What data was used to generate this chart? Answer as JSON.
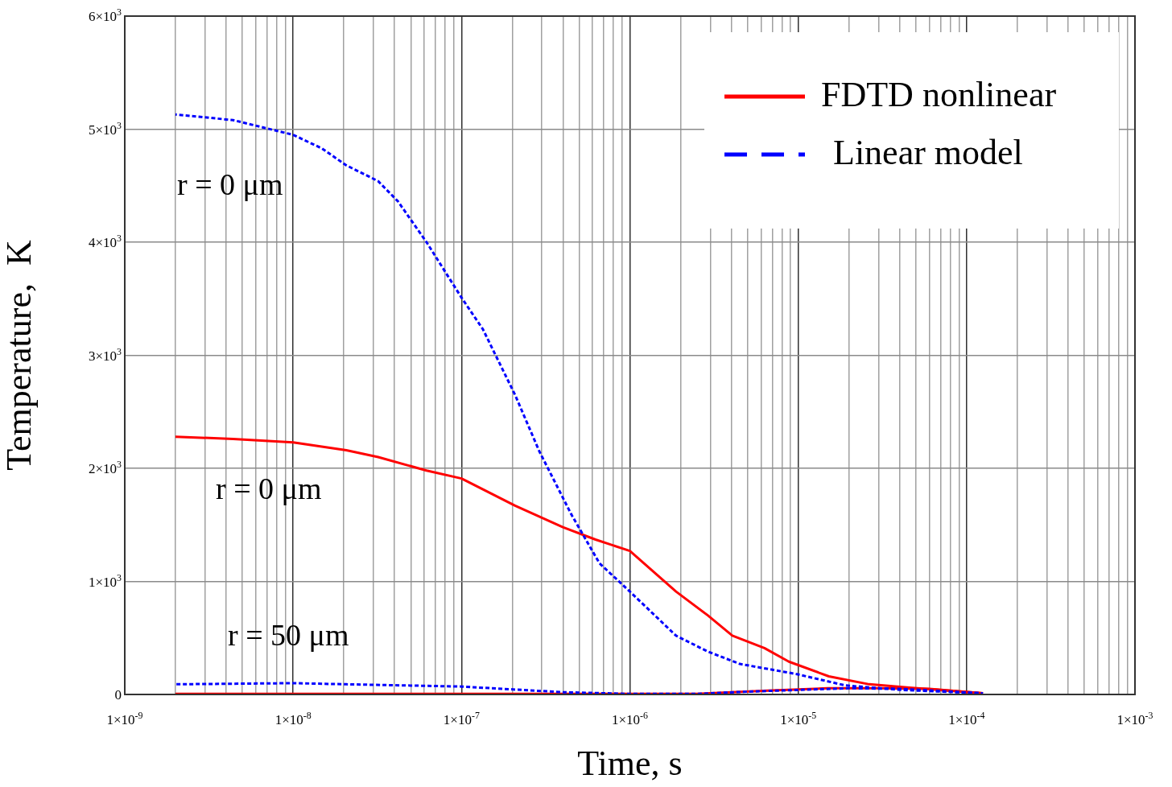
{
  "chart_data": {
    "type": "line",
    "xlabel": "Time, s",
    "ylabel": "Temperature,  K",
    "log": "x",
    "grid": true,
    "legend": "top right",
    "marker": "none",
    "xlim": [
      1e-09,
      0.001
    ],
    "xticks": [
      {
        "value": 1e-09,
        "label": "1×10$^{-9}$"
      },
      {
        "value": 2e-09,
        "label": null
      },
      {
        "value": 3e-09,
        "label": null
      },
      {
        "value": 4e-09,
        "label": null
      },
      {
        "value": 5e-09,
        "label": null
      },
      {
        "value": 6e-09,
        "label": null
      },
      {
        "value": 7e-09,
        "label": null
      },
      {
        "value": 8e-09,
        "label": null
      },
      {
        "value": 9e-09,
        "label": null
      },
      {
        "value": 1e-08,
        "label": "1×10$^{-8}$"
      },
      {
        "value": 2e-08,
        "label": null
      },
      {
        "value": 3e-08,
        "label": null
      },
      {
        "value": 4e-08,
        "label": null
      },
      {
        "value": 5e-08,
        "label": null
      },
      {
        "value": 6e-08,
        "label": null
      },
      {
        "value": 7e-08,
        "label": null
      },
      {
        "value": 8e-08,
        "label": null
      },
      {
        "value": 9e-08,
        "label": null
      },
      {
        "value": 1e-07,
        "label": "1×10$^{-7}$"
      },
      {
        "value": 2e-07,
        "label": null
      },
      {
        "value": 3e-07,
        "label": null
      },
      {
        "value": 4e-07,
        "label": null
      },
      {
        "value": 5e-07,
        "label": null
      },
      {
        "value": 6e-07,
        "label": null
      },
      {
        "value": 7e-07,
        "label": null
      },
      {
        "value": 8e-07,
        "label": null
      },
      {
        "value": 9e-07,
        "label": null
      },
      {
        "value": 1e-06,
        "label": "1×10$^{-6}$"
      },
      {
        "value": 2e-06,
        "label": null
      },
      {
        "value": 3e-06,
        "label": null
      },
      {
        "value": 4e-06,
        "label": null
      },
      {
        "value": 5e-06,
        "label": null
      },
      {
        "value": 6e-06,
        "label": null
      },
      {
        "value": 7e-06,
        "label": null
      },
      {
        "value": 8e-06,
        "label": null
      },
      {
        "value": 9e-06,
        "label": null
      },
      {
        "value": 1e-05,
        "label": "1×10$^{-5}$"
      },
      {
        "value": 2e-05,
        "label": null
      },
      {
        "value": 3e-05,
        "label": null
      },
      {
        "value": 4e-05,
        "label": null
      },
      {
        "value": 5e-05,
        "label": null
      },
      {
        "value": 6e-05,
        "label": null
      },
      {
        "value": 7e-05,
        "label": null
      },
      {
        "value": 8e-05,
        "label": null
      },
      {
        "value": 9e-05,
        "label": null
      },
      {
        "value": 0.0001,
        "label": "1×10$^{-4}$"
      },
      {
        "value": 0.0002,
        "label": null
      },
      {
        "value": 0.0003,
        "label": null
      },
      {
        "value": 0.0004,
        "label": null
      },
      {
        "value": 0.0005,
        "label": null
      },
      {
        "value": 0.0006,
        "label": null
      },
      {
        "value": 0.0007,
        "label": null
      },
      {
        "value": 0.0008,
        "label": null
      },
      {
        "value": 0.0009,
        "label": null
      },
      {
        "value": 0.001,
        "label": "1×10$^{-3}$"
      }
    ],
    "ylim": [
      0,
      6000
    ],
    "yticks": [
      {
        "value": 0,
        "label": "0"
      },
      {
        "value": 1000,
        "label": "1×10$^{3}$"
      },
      {
        "value": 2000,
        "label": "2×10$^{3}$"
      },
      {
        "value": 3000,
        "label": "3×10$^{3}$"
      },
      {
        "value": 4000,
        "label": "4×10$^{3}$"
      },
      {
        "value": 5000,
        "label": "5×10$^{3}$"
      },
      {
        "value": 6000,
        "label": "6×10$^{3}$"
      }
    ],
    "series": [
      {
        "name": "FDTD nonlinear",
        "color": "#ff0000",
        "line_style": "solid",
        "x": [
          2e-09,
          4.4e-09,
          1e-08,
          2.07e-08,
          3.2e-08,
          6.2e-08,
          1e-07,
          2.08e-07,
          4e-07,
          6.25e-07,
          1e-06,
          1.88e-06,
          2.9e-06,
          4.06e-06,
          6.3e-06,
          8.8e-06,
          1.52e-05,
          2.64e-05,
          4.57e-05,
          0.000125
        ],
        "values": [
          2280,
          2260,
          2230,
          2160,
          2100,
          1980,
          1910,
          1670,
          1480,
          1370,
          1270,
          910,
          700,
          520,
          410,
          290,
          160,
          90,
          60,
          10
        ]
      },
      {
        "name": "Linear model",
        "color": "#0000ff",
        "line_style": "dashed",
        "x": [
          2e-09,
          4.4e-09,
          1e-08,
          1.48e-08,
          2.07e-08,
          3.2e-08,
          4.2e-08,
          6.2e-08,
          1e-07,
          1.34e-07,
          2.08e-07,
          2.9e-07,
          4.5e-07,
          6.6e-07,
          1e-06,
          1.88e-06,
          2.9e-06,
          4.5e-06,
          9.8e-06,
          1.9e-05,
          4.1e-05,
          0.000125
        ],
        "values": [
          5130,
          5080,
          4950,
          4830,
          4680,
          4540,
          4360,
          4000,
          3510,
          3230,
          2650,
          2150,
          1590,
          1160,
          910,
          520,
          380,
          270,
          180,
          80,
          40,
          10
        ]
      },
      {
        "color": "#ff0000",
        "line_style": "solid",
        "x": [
          2e-09,
          1e-07,
          1e-06,
          2.5e-06,
          4e-06,
          7e-06,
          1.5e-05,
          3e-05,
          6e-05,
          0.000125
        ],
        "values": [
          5,
          5,
          5,
          5,
          20,
          35,
          55,
          55,
          50,
          10
        ]
      },
      {
        "color": "#0000ff",
        "line_style": "dashed",
        "x": [
          2e-09,
          1e-08,
          2.07e-08,
          1e-07,
          4e-07,
          1e-06,
          2.5e-06,
          5e-06,
          1e-05,
          2e-05,
          4e-05,
          0.000125
        ],
        "values": [
          90,
          100,
          90,
          70,
          20,
          5,
          5,
          25,
          40,
          55,
          50,
          10
        ]
      }
    ],
    "annotations": [
      "r = 0 μm",
      "r = 0 μm",
      "r = 50 μm"
    ]
  }
}
